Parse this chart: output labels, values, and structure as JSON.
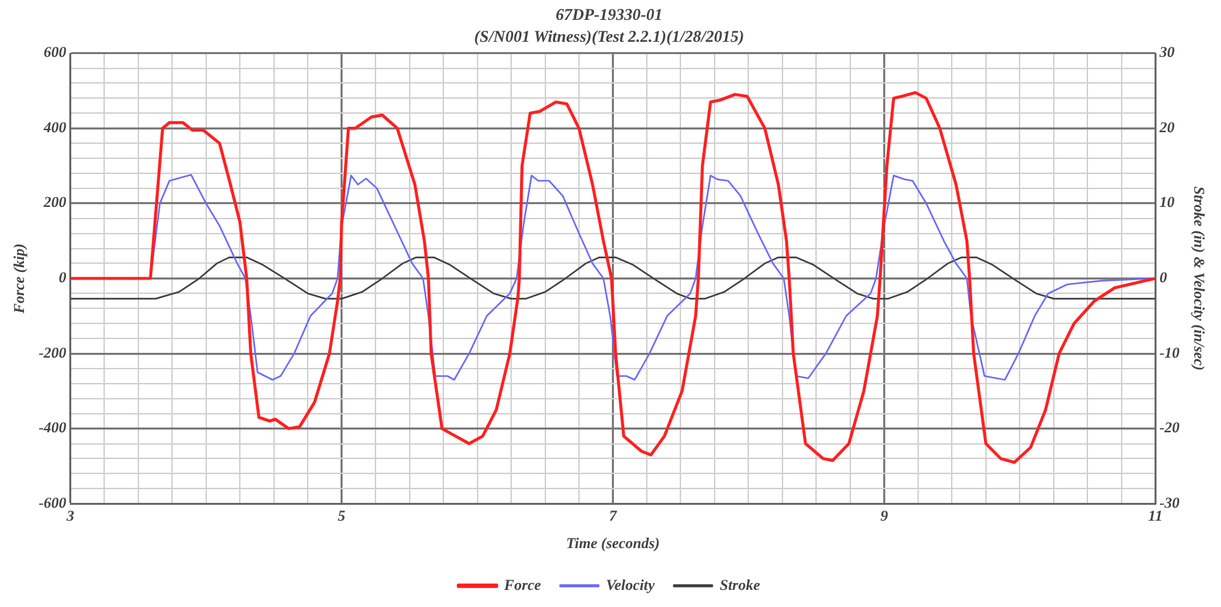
{
  "chart_data": {
    "type": "line",
    "title": "67DP-19330-01",
    "subtitle": "(S/N001 Witness)(Test 2.2.1)(1/28/2015)",
    "xlabel": "Time (seconds)",
    "ylabel": "Force (kip)",
    "y2label": "Stroke (in) & Velocity (in/sec)",
    "xlim": [
      3,
      11
    ],
    "ylim": [
      -600,
      600
    ],
    "y2lim": [
      -30,
      30
    ],
    "xticks": [
      3,
      {
        "value": 3.25,
        "label": null
      },
      {
        "value": 3.5,
        "label": null
      },
      {
        "value": 3.75,
        "label": null
      },
      {
        "value": 4,
        "label": null
      },
      {
        "value": 4.25,
        "label": null
      },
      {
        "value": 4.5,
        "label": null
      },
      {
        "value": 4.75,
        "label": null
      },
      5,
      {
        "value": 5.25,
        "label": null
      },
      {
        "value": 5.5,
        "label": null
      },
      {
        "value": 5.75,
        "label": null
      },
      {
        "value": 6,
        "label": null
      },
      {
        "value": 6.25,
        "label": null
      },
      {
        "value": 6.5,
        "label": null
      },
      {
        "value": 6.75,
        "label": null
      },
      7,
      {
        "value": 7.25,
        "label": null
      },
      {
        "value": 7.5,
        "label": null
      },
      {
        "value": 7.75,
        "label": null
      },
      {
        "value": 8,
        "label": null
      },
      {
        "value": 8.25,
        "label": null
      },
      {
        "value": 8.5,
        "label": null
      },
      {
        "value": 8.75,
        "label": null
      },
      9,
      {
        "value": 9.25,
        "label": null
      },
      {
        "value": 9.5,
        "label": null
      },
      {
        "value": 9.75,
        "label": null
      },
      {
        "value": 10,
        "label": null
      },
      {
        "value": 10.25,
        "label": null
      },
      {
        "value": 10.5,
        "label": null
      },
      {
        "value": 10.75,
        "label": null
      },
      11
    ],
    "yticks": [
      -600,
      {
        "value": -560,
        "label": null
      },
      {
        "value": -520,
        "label": null
      },
      {
        "value": -480,
        "label": null
      },
      {
        "value": -440,
        "label": null
      },
      -400,
      {
        "value": -360,
        "label": null
      },
      {
        "value": -320,
        "label": null
      },
      {
        "value": -280,
        "label": null
      },
      {
        "value": -240,
        "label": null
      },
      -200,
      {
        "value": -160,
        "label": null
      },
      {
        "value": -120,
        "label": null
      },
      {
        "value": -80,
        "label": null
      },
      {
        "value": -40,
        "label": null
      },
      0,
      {
        "value": 40,
        "label": null
      },
      {
        "value": 80,
        "label": null
      },
      {
        "value": 120,
        "label": null
      },
      {
        "value": 160,
        "label": null
      },
      200,
      {
        "value": 240,
        "label": null
      },
      {
        "value": 280,
        "label": null
      },
      {
        "value": 320,
        "label": null
      },
      {
        "value": 360,
        "label": null
      },
      400,
      {
        "value": 440,
        "label": null
      },
      {
        "value": 480,
        "label": null
      },
      {
        "value": 520,
        "label": null
      },
      {
        "value": 560,
        "label": null
      },
      600
    ],
    "y2ticks": [
      -30,
      -20,
      -10,
      0,
      10,
      20,
      30
    ],
    "grid": true,
    "legend": "bottom",
    "marker": "none",
    "line_style": "solid",
    "series": [
      {
        "name": "Force",
        "color": "#ff2020",
        "x": [
          3,
          3.59,
          3.68,
          3.73,
          3.83,
          3.9,
          3.98,
          4.1,
          4.18,
          4.25,
          4.3,
          4.33,
          4.39,
          4.47,
          4.51,
          4.61,
          4.69,
          4.8,
          4.91,
          4.97,
          4.99,
          5.0,
          5.05,
          5.1,
          5.22,
          5.3,
          5.41,
          5.54,
          5.61,
          5.64,
          5.66,
          5.74,
          5.84,
          5.94,
          6.04,
          6.14,
          6.24,
          6.3,
          6.31,
          6.33,
          6.39,
          6.46,
          6.58,
          6.66,
          6.75,
          6.85,
          6.93,
          6.99,
          7.02,
          7.08,
          7.21,
          7.28,
          7.38,
          7.51,
          7.61,
          7.63,
          7.66,
          7.72,
          7.79,
          7.9,
          7.99,
          8.12,
          8.22,
          8.28,
          8.3,
          8.33,
          8.42,
          8.55,
          8.62,
          8.74,
          8.85,
          8.95,
          8.97,
          9.02,
          9.07,
          9.13,
          9.23,
          9.31,
          9.41,
          9.53,
          9.61,
          9.63,
          9.66,
          9.75,
          9.86,
          9.96,
          10.08,
          10.19,
          10.29,
          10.4,
          10.55,
          10.7,
          10.9,
          11
        ],
        "values": [
          0,
          0,
          400,
          415,
          415,
          395,
          395,
          360,
          250,
          150,
          0,
          -200,
          -370,
          -380,
          -375,
          -400,
          -395,
          -330,
          -200,
          -60,
          0,
          150,
          400,
          400,
          430,
          435,
          400,
          250,
          100,
          0,
          -200,
          -400,
          -420,
          -440,
          -420,
          -350,
          -200,
          -50,
          0,
          300,
          440,
          445,
          470,
          465,
          400,
          250,
          100,
          0,
          -200,
          -420,
          -460,
          -470,
          -420,
          -300,
          -100,
          0,
          300,
          470,
          475,
          490,
          485,
          400,
          250,
          100,
          0,
          -200,
          -440,
          -480,
          -485,
          -440,
          -300,
          -100,
          0,
          300,
          480,
          485,
          495,
          480,
          400,
          250,
          100,
          0,
          -200,
          -440,
          -480,
          -490,
          -450,
          -350,
          -200,
          -120,
          -60,
          -25,
          -8,
          0
        ]
      },
      {
        "name": "Velocity",
        "color": "#6a6aff",
        "axis": "y2",
        "x": [
          3,
          3.59,
          3.66,
          3.73,
          3.83,
          3.89,
          4.0,
          4.1,
          4.23,
          4.29,
          4.33,
          4.38,
          4.49,
          4.55,
          4.65,
          4.77,
          4.93,
          4.97,
          5.0,
          5.07,
          5.12,
          5.18,
          5.26,
          5.39,
          5.52,
          5.6,
          5.64,
          5.69,
          5.78,
          5.83,
          5.94,
          6.07,
          6.24,
          6.29,
          6.34,
          6.4,
          6.45,
          6.53,
          6.63,
          6.75,
          6.85,
          6.93,
          6.98,
          7.03,
          7.1,
          7.16,
          7.27,
          7.4,
          7.57,
          7.61,
          7.66,
          7.72,
          7.77,
          7.85,
          7.94,
          8.07,
          8.18,
          8.26,
          8.3,
          8.35,
          8.44,
          8.57,
          8.72,
          8.9,
          8.94,
          9.0,
          9.07,
          9.15,
          9.21,
          9.31,
          9.44,
          9.53,
          9.61,
          9.64,
          9.74,
          9.89,
          9.99,
          10.11,
          10.21,
          10.35,
          10.6,
          11
        ],
        "values": [
          0,
          0,
          10,
          13,
          13.5,
          13.8,
          10,
          7,
          2,
          0,
          -5,
          -12.5,
          -13.5,
          -13,
          -10,
          -5,
          -2,
          0,
          7,
          13.7,
          12.5,
          13.3,
          12,
          7,
          2,
          0,
          -5,
          -13,
          -13,
          -13.5,
          -10,
          -5,
          -2,
          0,
          7,
          13.7,
          13,
          13,
          11,
          6,
          2,
          0,
          -5,
          -13,
          -13,
          -13.5,
          -10,
          -5,
          -2,
          0,
          7,
          13.7,
          13.2,
          13,
          11,
          6,
          2,
          0,
          -5,
          -13,
          -13.3,
          -10,
          -5,
          -2,
          0,
          7,
          13.7,
          13.2,
          13,
          10,
          5,
          2,
          0,
          -5,
          -13,
          -13.5,
          -10,
          -5,
          -2,
          -0.8,
          -0.3,
          0
        ]
      },
      {
        "name": "Stroke",
        "color": "#404040",
        "axis": "y2",
        "x": [
          3,
          3.63,
          3.8,
          3.95,
          4.08,
          4.17,
          4.3,
          4.42,
          4.58,
          4.75,
          4.88,
          5.0,
          5.15,
          5.3,
          5.45,
          5.55,
          5.68,
          5.8,
          5.95,
          6.12,
          6.25,
          6.36,
          6.5,
          6.65,
          6.8,
          6.9,
          7.02,
          7.15,
          7.3,
          7.47,
          7.57,
          7.68,
          7.82,
          7.97,
          8.12,
          8.22,
          8.35,
          8.48,
          8.63,
          8.8,
          8.92,
          9.03,
          9.17,
          9.32,
          9.47,
          9.57,
          9.68,
          9.8,
          9.95,
          10.12,
          10.25,
          11
        ],
        "values": [
          -2.7,
          -2.7,
          -1.8,
          0,
          2,
          2.8,
          2.8,
          1.8,
          0,
          -2,
          -2.7,
          -2.7,
          -1.8,
          0,
          2,
          2.8,
          2.8,
          1.8,
          0,
          -2,
          -2.7,
          -2.7,
          -1.8,
          0,
          2,
          2.8,
          2.8,
          1.8,
          0,
          -2,
          -2.7,
          -2.7,
          -1.8,
          0,
          2,
          2.8,
          2.8,
          1.8,
          0,
          -2,
          -2.7,
          -2.7,
          -1.8,
          0,
          2,
          2.8,
          2.8,
          1.8,
          0,
          -2,
          -2.7,
          -2.7
        ]
      }
    ]
  }
}
